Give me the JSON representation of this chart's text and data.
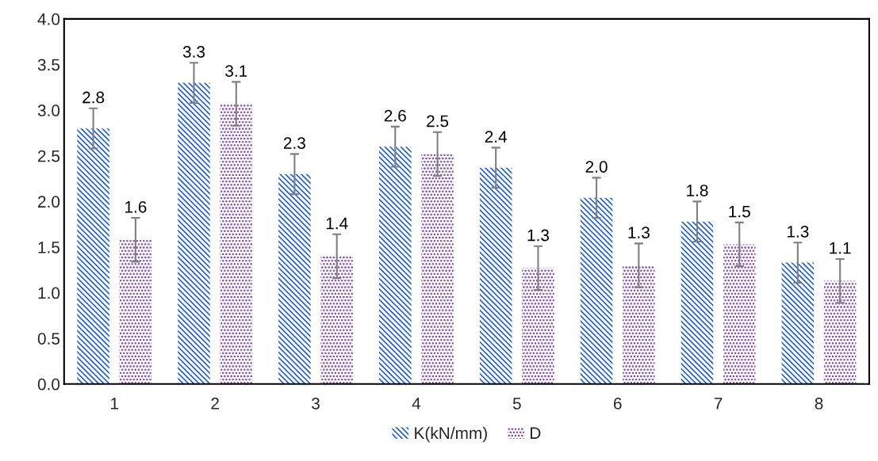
{
  "chart_data": {
    "type": "bar",
    "categories": [
      "1",
      "2",
      "3",
      "4",
      "5",
      "6",
      "7",
      "8"
    ],
    "series": [
      {
        "name": "K(kN/mm)",
        "color": "#1f5fd1",
        "values": [
          2.8,
          3.3,
          2.3,
          2.6,
          2.37,
          2.04,
          1.78,
          1.33
        ],
        "errors": [
          0.22,
          0.22,
          0.22,
          0.22,
          0.22,
          0.22,
          0.22,
          0.22
        ],
        "value_labels": [
          "2.8",
          "3.3",
          "2.3",
          "2.6",
          "2.4",
          "2.0",
          "1.8",
          "1.3"
        ]
      },
      {
        "name": "D",
        "color": "#7030a0",
        "values": [
          1.58,
          3.07,
          1.4,
          2.52,
          1.27,
          1.3,
          1.53,
          1.13
        ],
        "errors": [
          0.24,
          0.24,
          0.24,
          0.24,
          0.24,
          0.24,
          0.24,
          0.24
        ],
        "value_labels": [
          "1.6",
          "3.1",
          "1.4",
          "2.5",
          "1.3",
          "1.3",
          "1.5",
          "1.1"
        ]
      }
    ],
    "ylim": [
      0,
      4
    ],
    "yticks": [
      {
        "value": 0,
        "label": "0.0"
      },
      {
        "value": 0.5,
        "label": "0.5"
      },
      {
        "value": 1,
        "label": "1.0"
      },
      {
        "value": 1.5,
        "label": "1.5"
      },
      {
        "value": 2,
        "label": "2.0"
      },
      {
        "value": 2.5,
        "label": "2.5"
      },
      {
        "value": 3,
        "label": "3.0"
      },
      {
        "value": 3.5,
        "label": "3.5"
      },
      {
        "value": 4,
        "label": "4.0"
      }
    ],
    "grid": false,
    "legend": "bottom"
  }
}
